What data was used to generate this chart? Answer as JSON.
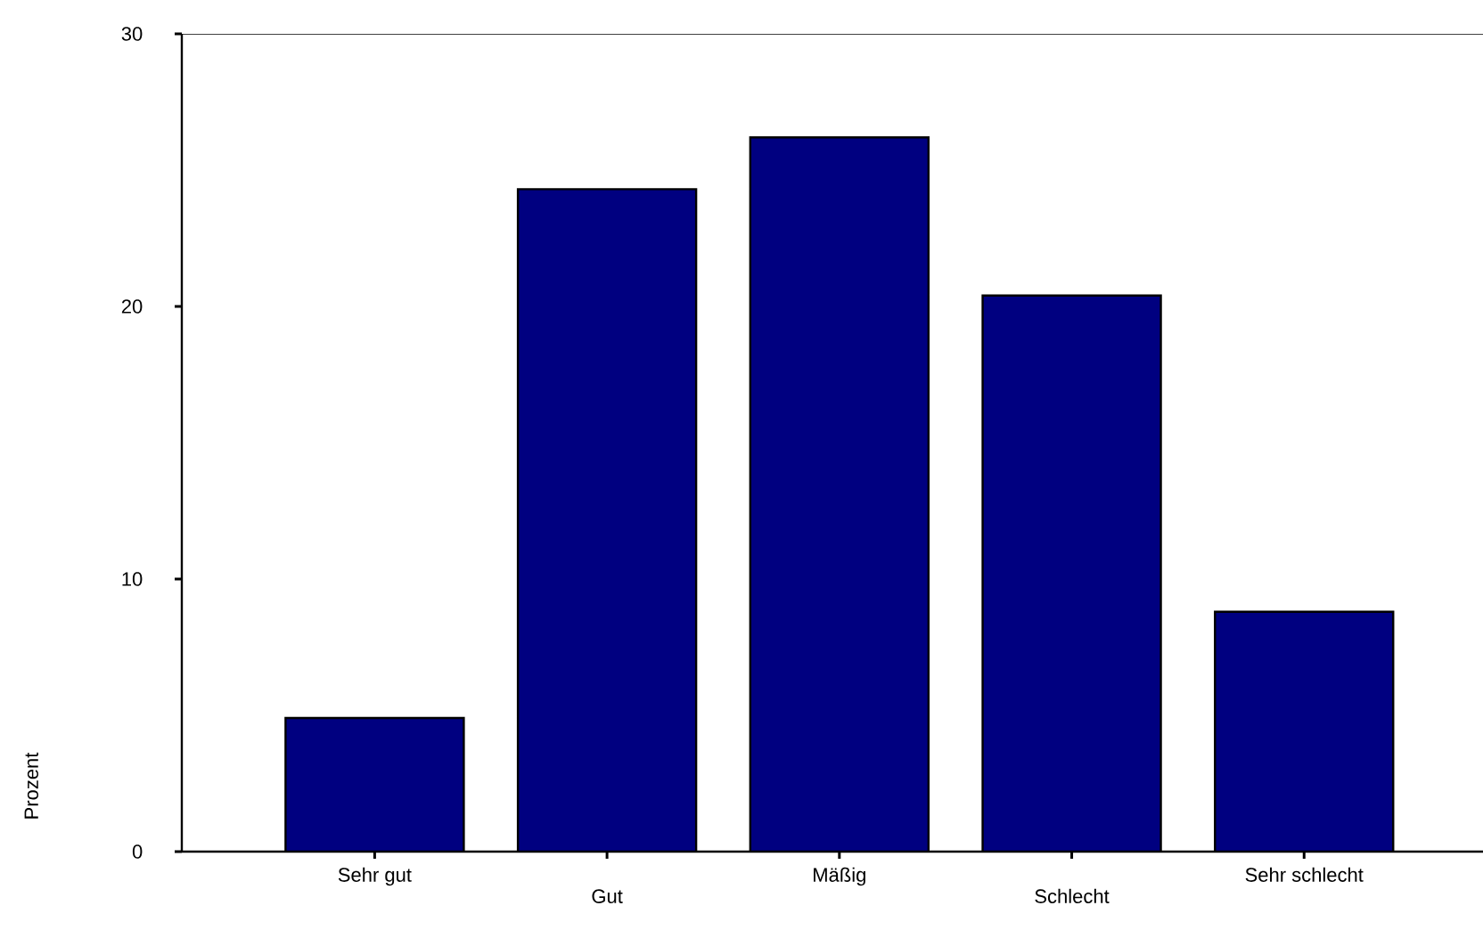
{
  "chart_data": {
    "type": "bar",
    "ylabel": "Prozent",
    "categories": [
      "Sehr gut",
      "Gut",
      "Mäßig",
      "Schlecht",
      "Sehr schlecht"
    ],
    "values": [
      4.9,
      24.3,
      26.2,
      20.4,
      8.8
    ],
    "color": "#000080",
    "ylim": [
      0,
      30
    ],
    "yticks": [
      0,
      10,
      20,
      30
    ],
    "grid": false
  }
}
